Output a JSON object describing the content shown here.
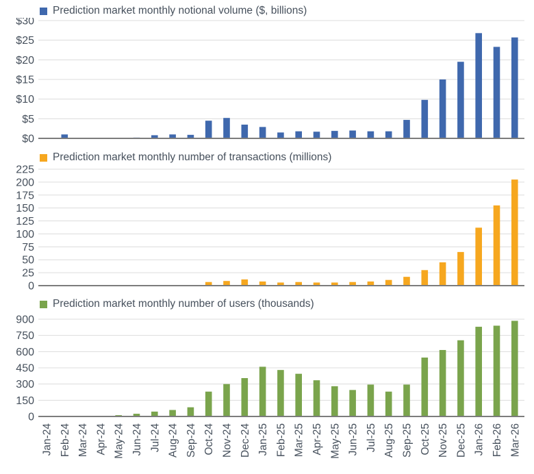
{
  "page": {
    "background": "#FFFFFF",
    "text_color": "#46505C",
    "gridline_color": "#DCDCDC",
    "axis_line_color": "#7C7C7C"
  },
  "chart_data": [
    {
      "type": "bar",
      "title": "Prediction market monthly notional volume ($, billions)",
      "legend_position": "top-left",
      "grid": "horizontal",
      "color": "#3F68AD",
      "ylim": [
        0,
        30
      ],
      "y_step": 5,
      "y_tick_labels": [
        "$0",
        "$5",
        "$10",
        "$15",
        "$20",
        "$25",
        "$30"
      ],
      "x_tick_rotation": 90,
      "x_ticks_shown": false,
      "categories": [
        "Jan-24",
        "Feb-24",
        "Mar-24",
        "Apr-24",
        "May-24",
        "Jun-24",
        "Jul-24",
        "Aug-24",
        "Sep-24",
        "Oct-24",
        "Nov-24",
        "Dec-24",
        "Jan-25",
        "Feb-25",
        "Mar-25",
        "Apr-25",
        "May-25",
        "Jun-25",
        "Jul-25",
        "Aug-25",
        "Sep-25",
        "Oct-25",
        "Nov-25",
        "Dec-25",
        "Jan-26",
        "Feb-26",
        "Mar-26"
      ],
      "values": [
        0,
        1.0,
        0,
        0,
        0,
        0.2,
        0.8,
        1.0,
        0.9,
        4.5,
        5.2,
        3.5,
        2.9,
        1.5,
        1.8,
        1.7,
        1.9,
        2.0,
        1.8,
        1.8,
        4.7,
        9.8,
        15.0,
        19.5,
        26.8,
        23.3,
        25.7
      ]
    },
    {
      "type": "bar",
      "title": "Prediction market monthly number of transactions (millions)",
      "legend_position": "top-left",
      "grid": "horizontal",
      "color": "#F6A71F",
      "ylim": [
        0,
        225
      ],
      "y_step": 25,
      "y_tick_labels": [
        "0",
        "25",
        "50",
        "75",
        "100",
        "125",
        "150",
        "175",
        "200",
        "225"
      ],
      "x_tick_rotation": 90,
      "x_ticks_shown": false,
      "categories": [
        "Jan-24",
        "Feb-24",
        "Mar-24",
        "Apr-24",
        "May-24",
        "Jun-24",
        "Jul-24",
        "Aug-24",
        "Sep-24",
        "Oct-24",
        "Nov-24",
        "Dec-24",
        "Jan-25",
        "Feb-25",
        "Mar-25",
        "Apr-25",
        "May-25",
        "Jun-25",
        "Jul-25",
        "Aug-25",
        "Sep-25",
        "Oct-25",
        "Nov-25",
        "Dec-25",
        "Jan-26",
        "Feb-26",
        "Mar-26"
      ],
      "values": [
        0,
        0,
        0,
        0,
        0,
        0,
        0,
        0,
        1,
        7,
        9,
        12,
        8,
        6,
        7,
        6,
        6,
        7,
        8,
        11,
        17,
        30,
        45,
        65,
        112,
        155,
        205
      ]
    },
    {
      "type": "bar",
      "title": "Prediction market monthly number of users (thousands)",
      "legend_position": "top-left",
      "grid": "horizontal",
      "color": "#7AA44C",
      "ylim": [
        0,
        900
      ],
      "y_step": 150,
      "y_tick_labels": [
        "0",
        "150",
        "300",
        "450",
        "600",
        "750",
        "900"
      ],
      "x_tick_rotation": 90,
      "x_ticks_shown": true,
      "categories": [
        "Jan-24",
        "Feb-24",
        "Mar-24",
        "Apr-24",
        "May-24",
        "Jun-24",
        "Jul-24",
        "Aug-24",
        "Sep-24",
        "Oct-24",
        "Nov-24",
        "Dec-24",
        "Jan-25",
        "Feb-25",
        "Mar-25",
        "Apr-25",
        "May-25",
        "Jun-25",
        "Jul-25",
        "Aug-25",
        "Sep-25",
        "Oct-25",
        "Nov-25",
        "Dec-25",
        "Jan-26",
        "Feb-26",
        "Mar-26"
      ],
      "values": [
        0,
        0,
        0,
        0,
        12,
        25,
        45,
        60,
        85,
        230,
        300,
        355,
        460,
        430,
        395,
        335,
        280,
        245,
        295,
        230,
        295,
        545,
        615,
        705,
        830,
        840,
        885
      ]
    }
  ]
}
